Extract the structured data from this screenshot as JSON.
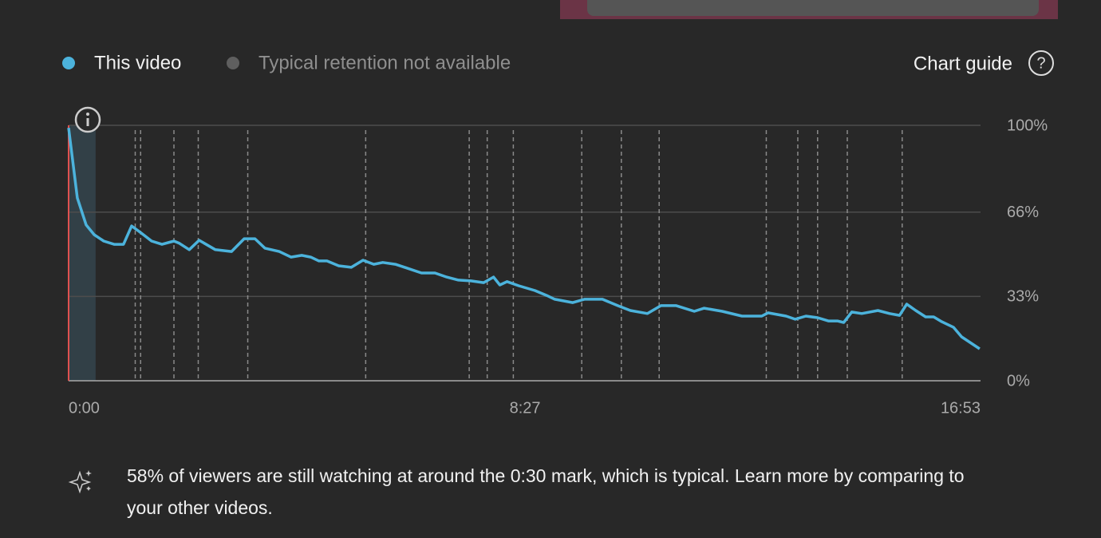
{
  "chart_data": {
    "type": "line",
    "x": [
      0,
      9.7,
      19.5,
      28.4,
      39,
      50.5,
      61,
      70,
      80.7,
      92.2,
      103.7,
      117,
      123,
      134,
      145,
      163,
      181,
      195,
      207,
      218,
      234,
      247,
      259,
      269,
      278,
      287,
      300,
      314,
      327,
      339,
      349,
      363,
      376,
      392,
      407,
      420,
      433,
      447,
      461,
      472,
      479,
      487,
      500,
      518,
      531,
      540,
      560,
      573,
      593,
      610,
      624,
      643,
      658,
      675,
      695,
      706,
      726,
      748,
      770,
      777,
      797,
      807,
      819,
      832,
      844,
      854,
      861,
      870,
      881,
      899,
      912,
      923,
      931,
      941,
      952,
      961,
      970,
      983,
      992,
      1012
    ],
    "series": [
      {
        "name": "This video",
        "color": "#4cb3dc",
        "values": [
          99,
          71.6,
          61,
          57.2,
          54.7,
          53.4,
          53.4,
          60.6,
          57.8,
          54.7,
          53.4,
          54.7,
          53.8,
          51.3,
          55,
          51.3,
          50.6,
          55.6,
          55.6,
          51.9,
          50.6,
          48.4,
          49.1,
          48.4,
          46.9,
          46.9,
          45,
          44.4,
          47.2,
          45.6,
          46.3,
          45.6,
          44.1,
          42.2,
          42.2,
          40.6,
          39.4,
          39.1,
          38.4,
          40.6,
          37.5,
          38.8,
          37.2,
          35.3,
          33.4,
          31.9,
          30.6,
          31.9,
          31.9,
          29.4,
          27.5,
          26.3,
          29.4,
          29.4,
          27.2,
          28.4,
          27.2,
          25.3,
          25.3,
          26.6,
          25.3,
          24.1,
          25.3,
          24.7,
          23.4,
          23.4,
          22.8,
          26.9,
          26.3,
          27.5,
          26.3,
          25.6,
          30,
          27.5,
          25,
          25,
          23.1,
          20.9,
          17.2,
          12.5
        ]
      }
    ],
    "legend_note": {
      "label": "Typical retention not available",
      "color": "#5f5f5f"
    },
    "markers": [
      74,
      80,
      117,
      144,
      199,
      330,
      445,
      465,
      494,
      570,
      614,
      656,
      775,
      810,
      832,
      865,
      926
    ],
    "highlight": [
      0,
      30
    ],
    "xlim": [
      0,
      1013
    ],
    "xticks": [
      {
        "value": 0,
        "label": "0:00"
      },
      {
        "value": 507,
        "label": "8:27"
      },
      {
        "value": 1013,
        "label": "16:53"
      }
    ],
    "ylim": [
      0,
      100
    ],
    "yticks": [
      {
        "value": 0,
        "label": "0%"
      },
      {
        "value": 33,
        "label": "33%"
      },
      {
        "value": 66,
        "label": "66%"
      },
      {
        "value": 100,
        "label": "100%"
      }
    ],
    "grid": true
  },
  "chart_guide": "Chart guide",
  "insight": "58% of viewers are still watching at around the 0:30 mark, which is typical. Learn more by comparing to your other videos."
}
